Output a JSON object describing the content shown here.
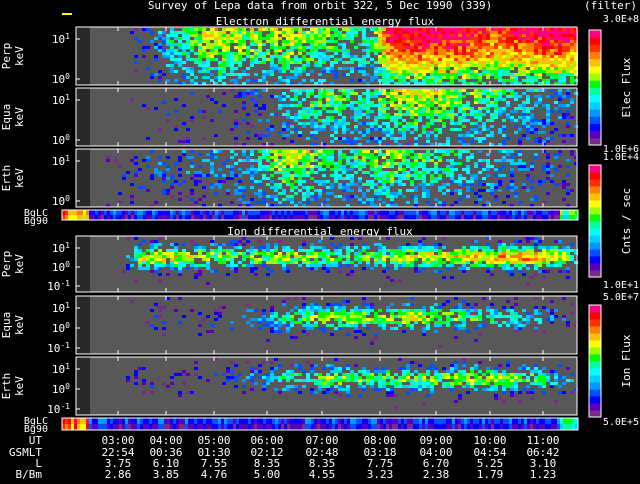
{
  "title": "Survey of Lepa data from orbit 322,  5 Dec 1990 (339)",
  "filter_label": "(filter)",
  "electron_section_title": "Electron differential energy flux",
  "ion_section_title": "Ion differential energy flux",
  "colorbars": [
    {
      "label": "Elec Flux",
      "max": "3.0E+8",
      "min": "1.0E+6"
    },
    {
      "label": "Cnts / sec",
      "max": "1.0E+4",
      "min": "1.0E+1"
    },
    {
      "label": "Ion Flux",
      "max": "5.0E+7",
      "min": "5.0E+5"
    }
  ],
  "colors": {
    "background": "#000000",
    "panel_bg": "#585858",
    "data_gap": "#282828",
    "scale": [
      "#7a2a8a",
      "#5a00b8",
      "#0000ff",
      "#0050ff",
      "#0098ff",
      "#00d0ff",
      "#00ffff",
      "#00ffa0",
      "#00ff00",
      "#9aff00",
      "#ffff00",
      "#ffc000",
      "#ff8000",
      "#ff3000",
      "#ff0000",
      "#ff0080"
    ]
  },
  "chart_data": {
    "type": "heatmap",
    "x_unit": "UT",
    "panels": [
      {
        "id": "electron-perp",
        "ylabel": [
          "Perp",
          "keV"
        ],
        "yticks": [
          "10^1",
          "10^0"
        ],
        "series": "electron",
        "intensity": [
          0,
          0,
          0,
          0.15,
          0.3,
          0.45,
          0.6,
          0.6,
          0.55,
          0.55,
          0.6,
          0.55,
          0.5,
          0.45,
          0.4,
          0.9,
          0.9,
          0.92,
          0.9,
          0.85,
          0.8,
          0.85,
          0.9,
          0.9,
          0.85
        ]
      },
      {
        "id": "electron-equa",
        "ylabel": [
          "Equa",
          "keV"
        ],
        "yticks": [
          "10^1",
          "10^0"
        ],
        "series": "electron",
        "intensity": [
          0,
          0,
          0,
          0.05,
          0.08,
          0.1,
          0.1,
          0.1,
          0.15,
          0.2,
          0.35,
          0.45,
          0.5,
          0.45,
          0.4,
          0.55,
          0.6,
          0.6,
          0.55,
          0.5,
          0.45,
          0.35,
          0.3,
          0.25,
          0.2
        ]
      },
      {
        "id": "electron-erth",
        "ylabel": [
          "Erth",
          "keV"
        ],
        "yticks": [
          "10^1",
          "10^0"
        ],
        "series": "electron",
        "intensity": [
          0,
          0,
          0.05,
          0.15,
          0.2,
          0.2,
          0.2,
          0.25,
          0.3,
          0.45,
          0.6,
          0.55,
          0.45,
          0.4,
          0.5,
          0.55,
          0.5,
          0.45,
          0.4,
          0.35,
          0.3,
          0.25,
          0.2,
          0.15,
          0.1
        ]
      },
      {
        "id": "ion-perp",
        "ylabel": [
          "Perp",
          "keV"
        ],
        "yticks": [
          "10^1",
          "10^0",
          "10^-1"
        ],
        "series": "ion",
        "intensity": [
          0,
          0,
          0,
          0.55,
          0.6,
          0.6,
          0.55,
          0.5,
          0.5,
          0.5,
          0.55,
          0.55,
          0.5,
          0.45,
          0.5,
          0.55,
          0.6,
          0.6,
          0.6,
          0.65,
          0.65,
          0.7,
          0.7,
          0.6,
          0.4
        ]
      },
      {
        "id": "ion-equa",
        "ylabel": [
          "Equa",
          "keV"
        ],
        "yticks": [
          "10^1",
          "10^0",
          "10^-1"
        ],
        "series": "ion",
        "intensity": [
          0,
          0,
          0,
          0.1,
          0.1,
          0.1,
          0.12,
          0.15,
          0.2,
          0.3,
          0.45,
          0.5,
          0.55,
          0.55,
          0.5,
          0.55,
          0.6,
          0.55,
          0.5,
          0.45,
          0.4,
          0.35,
          0.3,
          0.2,
          0.1
        ]
      },
      {
        "id": "ion-erth",
        "ylabel": [
          "Erth",
          "keV"
        ],
        "yticks": [
          "10^1",
          "10^0",
          "10^-1"
        ],
        "series": "ion",
        "intensity": [
          0,
          0,
          0,
          0.1,
          0.1,
          0.1,
          0.1,
          0.15,
          0.2,
          0.3,
          0.4,
          0.45,
          0.5,
          0.5,
          0.45,
          0.5,
          0.5,
          0.5,
          0.5,
          0.55,
          0.55,
          0.5,
          0.45,
          0.3,
          0.15
        ]
      }
    ],
    "bg_strips": [
      {
        "id": "electron-bg",
        "labels": [
          "BgLC",
          "Bg90"
        ]
      },
      {
        "id": "ion-bg",
        "labels": [
          "BgLC",
          "Bg90"
        ]
      }
    ],
    "time_axis": {
      "row_labels": [
        "UT",
        "GSMLT",
        "L",
        "B/Bm"
      ],
      "UT": [
        "03:00",
        "04:00",
        "05:00",
        "06:00",
        "07:00",
        "08:00",
        "09:00",
        "10:00",
        "11:00"
      ],
      "GSMLT": [
        "22:54",
        "00:36",
        "01:30",
        "02:12",
        "02:48",
        "03:18",
        "04:00",
        "04:54",
        "06:42"
      ],
      "L": [
        "3.75",
        "6.10",
        "7.55",
        "8.35",
        "8.35",
        "7.75",
        "6.70",
        "5.25",
        "3.10"
      ],
      "B/Bm": [
        "2.86",
        "3.85",
        "4.76",
        "5.00",
        "4.55",
        "3.23",
        "2.38",
        "1.79",
        "1.23"
      ]
    }
  }
}
